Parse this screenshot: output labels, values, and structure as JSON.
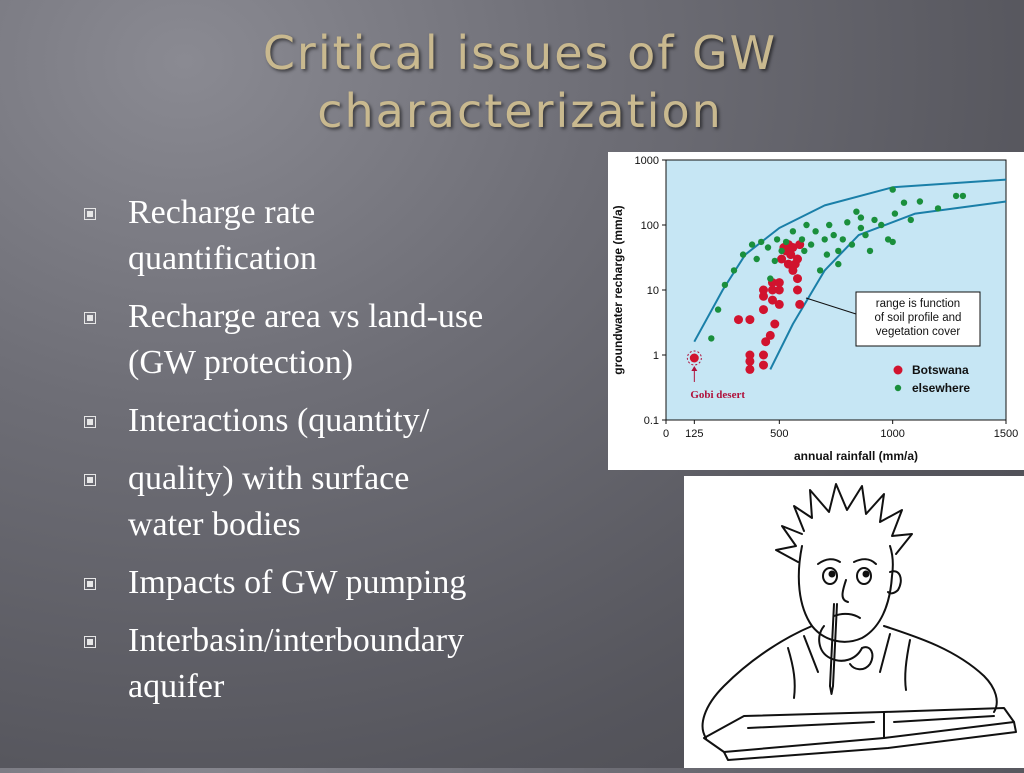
{
  "slide": {
    "title_line1": "Critical issues of GW",
    "title_line2": "characterization",
    "bullets": [
      [
        "Recharge rate",
        "quantification"
      ],
      [
        "Recharge area vs land-use",
        "(GW protection)"
      ],
      [
        "Interactions (quantity/"
      ],
      [
        "quality) with surface",
        "water bodies"
      ],
      [
        "Impacts of GW pumping"
      ],
      [
        "Interbasin/interboundary",
        "aquifer"
      ]
    ]
  },
  "chart_data": {
    "type": "scatter",
    "xlabel": "annual rainfall (mm/a)",
    "ylabel": "groundwater recharge (mm/a)",
    "xlim": [
      0,
      1500
    ],
    "ylim": [
      0.1,
      1000
    ],
    "y_scale": "log",
    "x_ticks": [
      "0",
      "125",
      "500",
      "1000",
      "1500"
    ],
    "y_ticks": [
      "0.1",
      "1",
      "10",
      "100",
      "1000"
    ],
    "background": "#c6e6f4",
    "envelope_color": "#1a7fa8",
    "annotation_box": [
      "range is function",
      "of soil profile and",
      "vegetation cover"
    ],
    "annotation_gobi": "Gobi desert",
    "series": [
      {
        "name": "Botswana",
        "color": "#d1132e",
        "points": [
          [
            125,
            0.9
          ],
          [
            320,
            3.5
          ],
          [
            370,
            3.5
          ],
          [
            370,
            1.0
          ],
          [
            370,
            0.6
          ],
          [
            370,
            0.8
          ],
          [
            430,
            8
          ],
          [
            430,
            5
          ],
          [
            430,
            10
          ],
          [
            430,
            1.0
          ],
          [
            430,
            0.7
          ],
          [
            440,
            1.6
          ],
          [
            460,
            2
          ],
          [
            470,
            13
          ],
          [
            470,
            7
          ],
          [
            470,
            10
          ],
          [
            480,
            3
          ],
          [
            500,
            13
          ],
          [
            500,
            10
          ],
          [
            500,
            6
          ],
          [
            510,
            30
          ],
          [
            520,
            45
          ],
          [
            530,
            40
          ],
          [
            540,
            50
          ],
          [
            540,
            25
          ],
          [
            550,
            35
          ],
          [
            560,
            20
          ],
          [
            560,
            45
          ],
          [
            570,
            25
          ],
          [
            580,
            15
          ],
          [
            580,
            10
          ],
          [
            580,
            30
          ],
          [
            590,
            6
          ],
          [
            590,
            50
          ]
        ]
      },
      {
        "name": "elsewhere",
        "color": "#1a8f3c",
        "points": [
          [
            200,
            1.8
          ],
          [
            230,
            5
          ],
          [
            260,
            12
          ],
          [
            300,
            20
          ],
          [
            340,
            35
          ],
          [
            380,
            50
          ],
          [
            400,
            30
          ],
          [
            420,
            55
          ],
          [
            450,
            45
          ],
          [
            460,
            15
          ],
          [
            480,
            28
          ],
          [
            490,
            60
          ],
          [
            510,
            40
          ],
          [
            530,
            55
          ],
          [
            560,
            80
          ],
          [
            600,
            60
          ],
          [
            610,
            40
          ],
          [
            620,
            100
          ],
          [
            640,
            50
          ],
          [
            660,
            80
          ],
          [
            680,
            20
          ],
          [
            700,
            60
          ],
          [
            710,
            35
          ],
          [
            720,
            100
          ],
          [
            740,
            70
          ],
          [
            760,
            40
          ],
          [
            780,
            60
          ],
          [
            800,
            110
          ],
          [
            820,
            50
          ],
          [
            840,
            160
          ],
          [
            860,
            90
          ],
          [
            880,
            70
          ],
          [
            900,
            40
          ],
          [
            920,
            120
          ],
          [
            950,
            100
          ],
          [
            980,
            60
          ],
          [
            1000,
            350
          ],
          [
            1010,
            150
          ],
          [
            1050,
            220
          ],
          [
            1080,
            120
          ],
          [
            1120,
            230
          ],
          [
            1200,
            180
          ],
          [
            1280,
            280
          ],
          [
            1310,
            280
          ],
          [
            1000,
            55
          ],
          [
            860,
            130
          ],
          [
            760,
            25
          ]
        ]
      }
    ]
  }
}
